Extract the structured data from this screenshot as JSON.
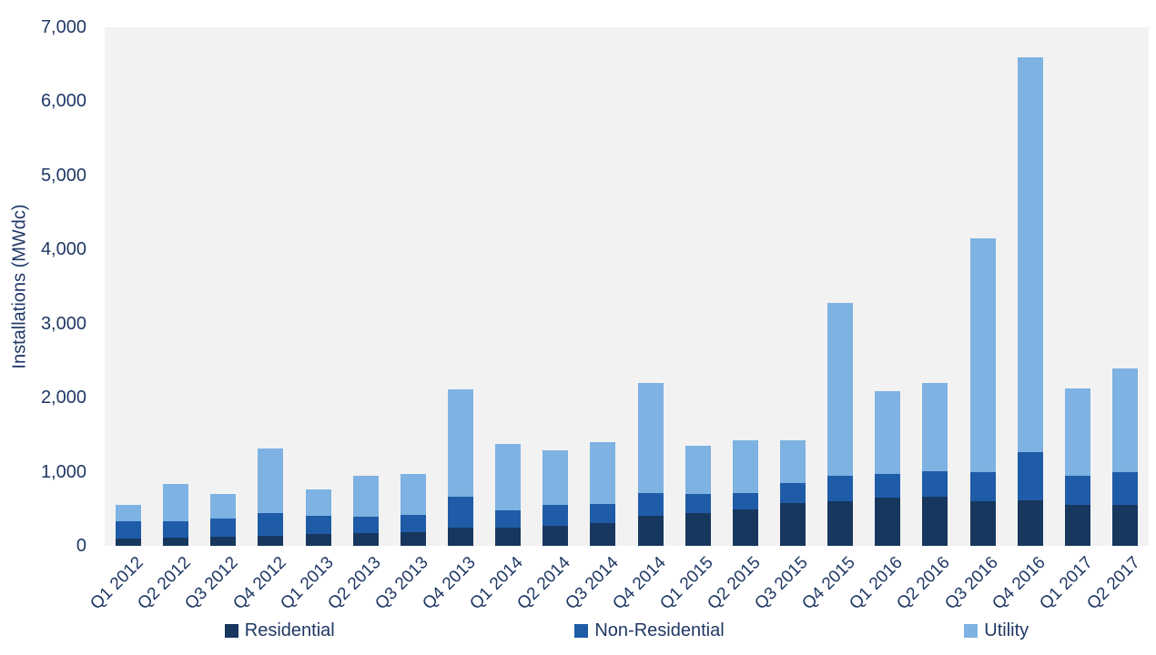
{
  "chart_data": {
    "type": "bar",
    "stacked": true,
    "title": "",
    "xlabel": "",
    "ylabel": "Installations (MWdc)",
    "ylim": [
      0,
      7000
    ],
    "ytick_step": 1000,
    "grid": false,
    "legend_position": "bottom",
    "plot_bg": "#F2F2F2",
    "text_color": "#1F3864",
    "categories": [
      "Q1 2012",
      "Q2 2012",
      "Q3 2012",
      "Q4 2012",
      "Q1 2013",
      "Q2 2013",
      "Q3 2013",
      "Q4 2013",
      "Q1 2014",
      "Q2 2014",
      "Q3 2014",
      "Q4 2014",
      "Q1 2015",
      "Q2 2015",
      "Q3 2015",
      "Q4 2015",
      "Q1 2016",
      "Q2 2016",
      "Q3 2016",
      "Q4 2016",
      "Q1 2017",
      "Q2 2017"
    ],
    "series": [
      {
        "name": "Residential",
        "color": "#17375E",
        "values": [
          100,
          105,
          120,
          140,
          160,
          170,
          190,
          250,
          240,
          270,
          310,
          400,
          440,
          490,
          580,
          600,
          650,
          660,
          600,
          620,
          550,
          550
        ]
      },
      {
        "name": "Non-Residential",
        "color": "#1F5CA8",
        "values": [
          230,
          230,
          250,
          300,
          250,
          220,
          230,
          410,
          240,
          280,
          250,
          310,
          260,
          220,
          270,
          340,
          320,
          350,
          400,
          650,
          400,
          450
        ]
      },
      {
        "name": "Utility",
        "color": "#7EB2E2",
        "values": [
          220,
          495,
          330,
          880,
          350,
          560,
          555,
          1450,
          890,
          740,
          840,
          1490,
          650,
          720,
          580,
          2340,
          1120,
          1190,
          3150,
          5330,
          1170,
          1390
        ]
      }
    ]
  }
}
